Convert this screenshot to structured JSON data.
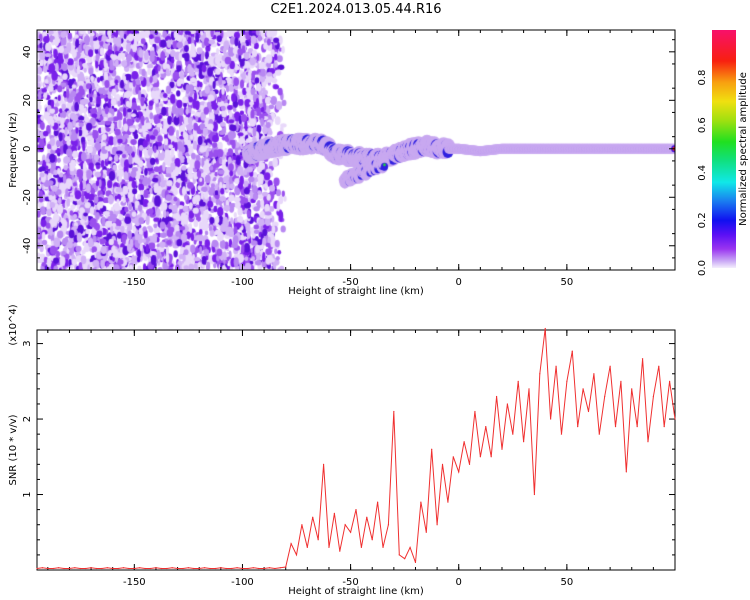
{
  "title": "C2E1.2024.013.05.44.R16",
  "chart_data": [
    {
      "type": "heatmap",
      "title": "C2E1.2024.013.05.44.R16",
      "xlabel": "Height of straight line (km)",
      "ylabel": "Frequency (Hz)",
      "xlim": [
        -195,
        100
      ],
      "ylim": [
        -50,
        49
      ],
      "xticks": [
        -150,
        -100,
        -50,
        0,
        50
      ],
      "xtick_labels": [
        "-150",
        "-100",
        "-50",
        "0",
        "50"
      ],
      "yticks": [
        40,
        20,
        0,
        -20,
        -40
      ],
      "ytick_labels": [
        "40",
        "20",
        "0",
        "-20",
        "-40"
      ],
      "colorbar": {
        "label": "Normalized spectral amplitude",
        "range": [
          0,
          1
        ],
        "ticks": [
          0.0,
          0.2,
          0.4,
          0.6,
          0.8
        ],
        "tick_labels": [
          "0.0",
          "0.2",
          "0.4",
          "0.6",
          "0.8"
        ]
      },
      "noise_region_x": [
        -195,
        -88
      ],
      "ridge": [
        [
          -97,
          -2
        ],
        [
          -90,
          0
        ],
        [
          -85,
          1
        ],
        [
          -78,
          2
        ],
        [
          -70,
          2
        ],
        [
          -63,
          2
        ],
        [
          -57,
          -2
        ],
        [
          -50,
          -3
        ],
        [
          -43,
          -4
        ],
        [
          -35,
          -4
        ],
        [
          -28,
          -2
        ],
        [
          -22,
          0
        ],
        [
          -15,
          1
        ],
        [
          -8,
          0
        ],
        [
          0,
          0
        ],
        [
          10,
          -1
        ],
        [
          20,
          0
        ],
        [
          100,
          0
        ]
      ],
      "ridge_branch": [
        [
          -53,
          -13
        ],
        [
          -47,
          -11
        ],
        [
          -40,
          -8
        ],
        [
          -34,
          -6
        ]
      ]
    },
    {
      "type": "line",
      "xlabel": "Height of straight line (km)",
      "ylabel": "SNR (10 * v/v)",
      "y_multiplier": "(x10^4)",
      "xlim": [
        -195,
        100
      ],
      "ylim": [
        0,
        3.18
      ],
      "xticks": [
        -150,
        -100,
        -50,
        0,
        50
      ],
      "xtick_labels": [
        "-150",
        "-100",
        "-50",
        "0",
        "50"
      ],
      "yticks": [
        1,
        2,
        3
      ],
      "ytick_labels": [
        "1",
        "2",
        "3"
      ],
      "color": "#f03030",
      "x_start": -195,
      "x_step": 2.5,
      "values": [
        0.02,
        0.03,
        0.02,
        0.02,
        0.03,
        0.02,
        0.02,
        0.03,
        0.02,
        0.02,
        0.03,
        0.02,
        0.02,
        0.03,
        0.02,
        0.02,
        0.03,
        0.02,
        0.02,
        0.03,
        0.02,
        0.02,
        0.03,
        0.02,
        0.02,
        0.03,
        0.02,
        0.02,
        0.03,
        0.02,
        0.02,
        0.03,
        0.02,
        0.02,
        0.03,
        0.02,
        0.02,
        0.03,
        0.02,
        0.02,
        0.03,
        0.02,
        0.02,
        0.03,
        0.02,
        0.03,
        0.04,
        0.35,
        0.2,
        0.6,
        0.3,
        0.7,
        0.4,
        1.4,
        0.3,
        0.75,
        0.25,
        0.6,
        0.5,
        0.8,
        0.3,
        0.7,
        0.4,
        0.9,
        0.3,
        0.6,
        2.1,
        0.2,
        0.15,
        0.3,
        0.1,
        0.9,
        0.5,
        1.6,
        0.6,
        1.4,
        0.9,
        1.5,
        1.3,
        1.7,
        1.4,
        2.1,
        1.5,
        1.9,
        1.5,
        2.3,
        1.6,
        2.2,
        1.8,
        2.5,
        1.7,
        2.4,
        1.0,
        2.6,
        3.2,
        2.0,
        2.7,
        1.8,
        2.5,
        2.9,
        1.9,
        2.4,
        2.1,
        2.6,
        1.8,
        2.3,
        2.7,
        1.9,
        2.5,
        1.3,
        2.4,
        1.9,
        2.8,
        1.7,
        2.3,
        2.7,
        1.9,
        2.5,
        2.0
      ]
    }
  ]
}
